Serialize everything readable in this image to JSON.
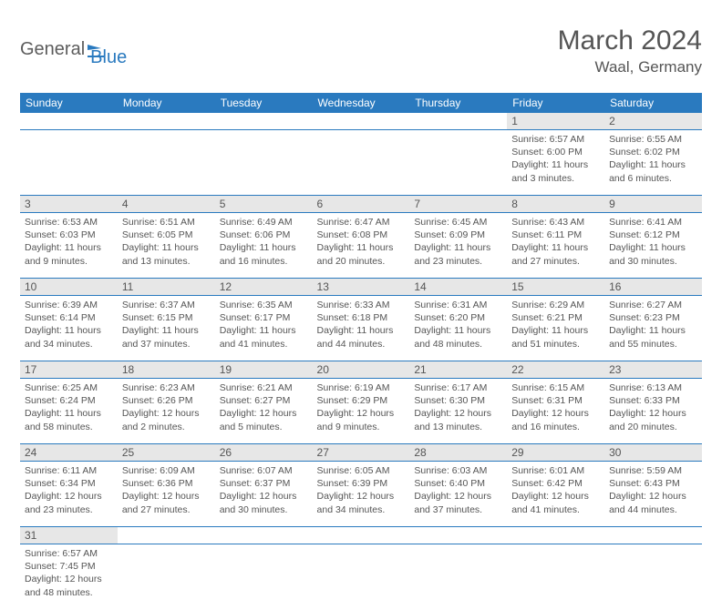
{
  "logo": {
    "part1": "General",
    "part2": "Blue"
  },
  "title": "March 2024",
  "location": "Waal, Germany",
  "day_headers": [
    "Sunday",
    "Monday",
    "Tuesday",
    "Wednesday",
    "Thursday",
    "Friday",
    "Saturday"
  ],
  "colors": {
    "header_bg": "#2a7abf",
    "header_text": "#ffffff",
    "daynum_bg": "#e7e7e7",
    "row_border": "#2a7abf",
    "body_text": "#555555"
  },
  "weeks": [
    [
      null,
      null,
      null,
      null,
      null,
      {
        "n": "1",
        "sunrise": "Sunrise: 6:57 AM",
        "sunset": "Sunset: 6:00 PM",
        "daylight": "Daylight: 11 hours and 3 minutes."
      },
      {
        "n": "2",
        "sunrise": "Sunrise: 6:55 AM",
        "sunset": "Sunset: 6:02 PM",
        "daylight": "Daylight: 11 hours and 6 minutes."
      }
    ],
    [
      {
        "n": "3",
        "sunrise": "Sunrise: 6:53 AM",
        "sunset": "Sunset: 6:03 PM",
        "daylight": "Daylight: 11 hours and 9 minutes."
      },
      {
        "n": "4",
        "sunrise": "Sunrise: 6:51 AM",
        "sunset": "Sunset: 6:05 PM",
        "daylight": "Daylight: 11 hours and 13 minutes."
      },
      {
        "n": "5",
        "sunrise": "Sunrise: 6:49 AM",
        "sunset": "Sunset: 6:06 PM",
        "daylight": "Daylight: 11 hours and 16 minutes."
      },
      {
        "n": "6",
        "sunrise": "Sunrise: 6:47 AM",
        "sunset": "Sunset: 6:08 PM",
        "daylight": "Daylight: 11 hours and 20 minutes."
      },
      {
        "n": "7",
        "sunrise": "Sunrise: 6:45 AM",
        "sunset": "Sunset: 6:09 PM",
        "daylight": "Daylight: 11 hours and 23 minutes."
      },
      {
        "n": "8",
        "sunrise": "Sunrise: 6:43 AM",
        "sunset": "Sunset: 6:11 PM",
        "daylight": "Daylight: 11 hours and 27 minutes."
      },
      {
        "n": "9",
        "sunrise": "Sunrise: 6:41 AM",
        "sunset": "Sunset: 6:12 PM",
        "daylight": "Daylight: 11 hours and 30 minutes."
      }
    ],
    [
      {
        "n": "10",
        "sunrise": "Sunrise: 6:39 AM",
        "sunset": "Sunset: 6:14 PM",
        "daylight": "Daylight: 11 hours and 34 minutes."
      },
      {
        "n": "11",
        "sunrise": "Sunrise: 6:37 AM",
        "sunset": "Sunset: 6:15 PM",
        "daylight": "Daylight: 11 hours and 37 minutes."
      },
      {
        "n": "12",
        "sunrise": "Sunrise: 6:35 AM",
        "sunset": "Sunset: 6:17 PM",
        "daylight": "Daylight: 11 hours and 41 minutes."
      },
      {
        "n": "13",
        "sunrise": "Sunrise: 6:33 AM",
        "sunset": "Sunset: 6:18 PM",
        "daylight": "Daylight: 11 hours and 44 minutes."
      },
      {
        "n": "14",
        "sunrise": "Sunrise: 6:31 AM",
        "sunset": "Sunset: 6:20 PM",
        "daylight": "Daylight: 11 hours and 48 minutes."
      },
      {
        "n": "15",
        "sunrise": "Sunrise: 6:29 AM",
        "sunset": "Sunset: 6:21 PM",
        "daylight": "Daylight: 11 hours and 51 minutes."
      },
      {
        "n": "16",
        "sunrise": "Sunrise: 6:27 AM",
        "sunset": "Sunset: 6:23 PM",
        "daylight": "Daylight: 11 hours and 55 minutes."
      }
    ],
    [
      {
        "n": "17",
        "sunrise": "Sunrise: 6:25 AM",
        "sunset": "Sunset: 6:24 PM",
        "daylight": "Daylight: 11 hours and 58 minutes."
      },
      {
        "n": "18",
        "sunrise": "Sunrise: 6:23 AM",
        "sunset": "Sunset: 6:26 PM",
        "daylight": "Daylight: 12 hours and 2 minutes."
      },
      {
        "n": "19",
        "sunrise": "Sunrise: 6:21 AM",
        "sunset": "Sunset: 6:27 PM",
        "daylight": "Daylight: 12 hours and 5 minutes."
      },
      {
        "n": "20",
        "sunrise": "Sunrise: 6:19 AM",
        "sunset": "Sunset: 6:29 PM",
        "daylight": "Daylight: 12 hours and 9 minutes."
      },
      {
        "n": "21",
        "sunrise": "Sunrise: 6:17 AM",
        "sunset": "Sunset: 6:30 PM",
        "daylight": "Daylight: 12 hours and 13 minutes."
      },
      {
        "n": "22",
        "sunrise": "Sunrise: 6:15 AM",
        "sunset": "Sunset: 6:31 PM",
        "daylight": "Daylight: 12 hours and 16 minutes."
      },
      {
        "n": "23",
        "sunrise": "Sunrise: 6:13 AM",
        "sunset": "Sunset: 6:33 PM",
        "daylight": "Daylight: 12 hours and 20 minutes."
      }
    ],
    [
      {
        "n": "24",
        "sunrise": "Sunrise: 6:11 AM",
        "sunset": "Sunset: 6:34 PM",
        "daylight": "Daylight: 12 hours and 23 minutes."
      },
      {
        "n": "25",
        "sunrise": "Sunrise: 6:09 AM",
        "sunset": "Sunset: 6:36 PM",
        "daylight": "Daylight: 12 hours and 27 minutes."
      },
      {
        "n": "26",
        "sunrise": "Sunrise: 6:07 AM",
        "sunset": "Sunset: 6:37 PM",
        "daylight": "Daylight: 12 hours and 30 minutes."
      },
      {
        "n": "27",
        "sunrise": "Sunrise: 6:05 AM",
        "sunset": "Sunset: 6:39 PM",
        "daylight": "Daylight: 12 hours and 34 minutes."
      },
      {
        "n": "28",
        "sunrise": "Sunrise: 6:03 AM",
        "sunset": "Sunset: 6:40 PM",
        "daylight": "Daylight: 12 hours and 37 minutes."
      },
      {
        "n": "29",
        "sunrise": "Sunrise: 6:01 AM",
        "sunset": "Sunset: 6:42 PM",
        "daylight": "Daylight: 12 hours and 41 minutes."
      },
      {
        "n": "30",
        "sunrise": "Sunrise: 5:59 AM",
        "sunset": "Sunset: 6:43 PM",
        "daylight": "Daylight: 12 hours and 44 minutes."
      }
    ],
    [
      {
        "n": "31",
        "sunrise": "Sunrise: 6:57 AM",
        "sunset": "Sunset: 7:45 PM",
        "daylight": "Daylight: 12 hours and 48 minutes."
      },
      null,
      null,
      null,
      null,
      null,
      null
    ]
  ]
}
